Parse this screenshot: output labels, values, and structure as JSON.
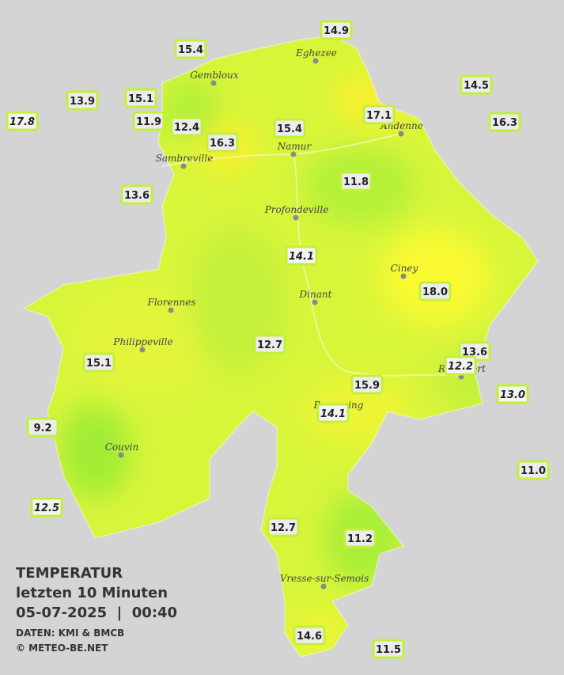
{
  "legend": {
    "title": "TEMPERATUR",
    "period": "letzten 10 Minuten",
    "datetime": "05-07-2025  |  00:40",
    "source": "DATEN: KMI & BMCB",
    "copyright": "© METEO-BE.NET"
  },
  "cities": [
    "Eghezee",
    "Gembloux",
    "Andenne",
    "Namur",
    "Sambreville",
    "Profondeville",
    "Ciney",
    "Dinant",
    "Florennes",
    "Philippeville",
    "Beauraing",
    "Rochefort",
    "Couvin",
    "Vresse-sur-Semois"
  ],
  "stations": [
    "14.9",
    "15.4",
    "14.5",
    "13.9",
    "15.1",
    "17.8",
    "11.9",
    "12.4",
    "15.4",
    "17.1",
    "16.3",
    "16.3",
    "13.6",
    "11.8",
    "14.1",
    "18.0",
    "12.7",
    "15.1",
    "13.6",
    "12.2",
    "15.9",
    "13.0",
    "14.1",
    "9.2",
    "11.0",
    "12.5",
    "12.7",
    "11.2",
    "14.6",
    "11.5"
  ]
}
